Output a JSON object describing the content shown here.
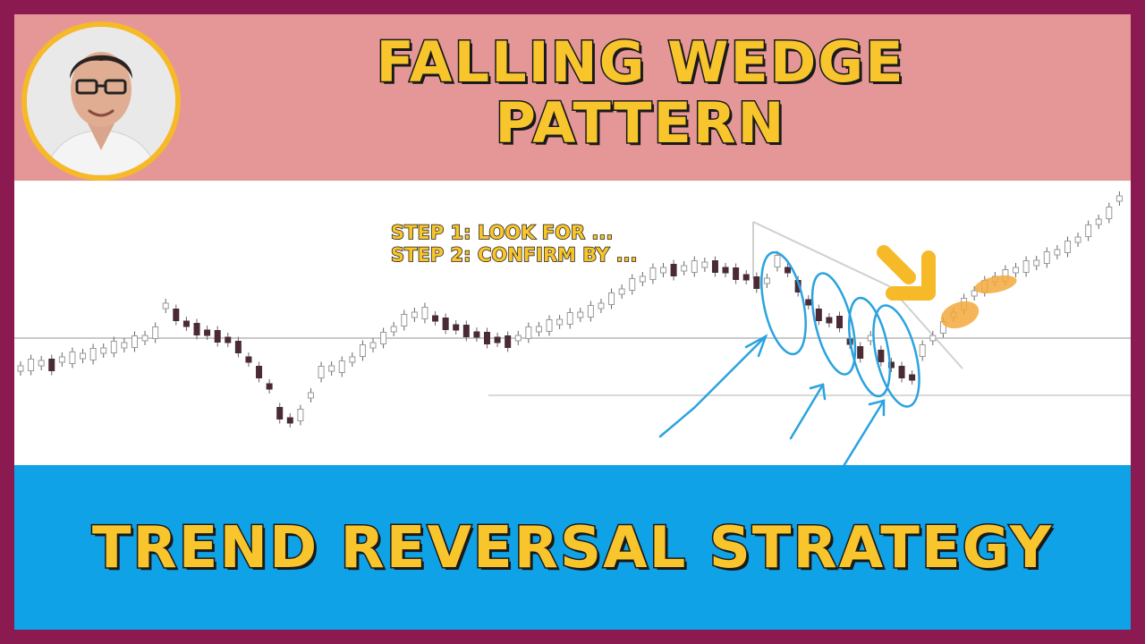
{
  "thumbnail": {
    "title": "FALLING WEDGE\nPATTERN",
    "title_line1": "FALLING WEDGE",
    "title_line2": "PATTERN",
    "subtitle": "TREND REVERSAL STRATEGY",
    "step1": "STEP 1: LOOK FOR ...",
    "step2": "STEP 2: CONFIRM BY ...",
    "colors": {
      "border": "#8a1a4f",
      "header_band": "#e59798",
      "footer_band": "#10a2e6",
      "title_text": "#f8c52c",
      "annotation_blue": "#2aa3e0",
      "arrow": "#f6b928",
      "highlight": "#f2a93b"
    },
    "icons": {
      "avatar": "presenter-portrait",
      "arrow": "down-right-arrow-icon"
    }
  }
}
